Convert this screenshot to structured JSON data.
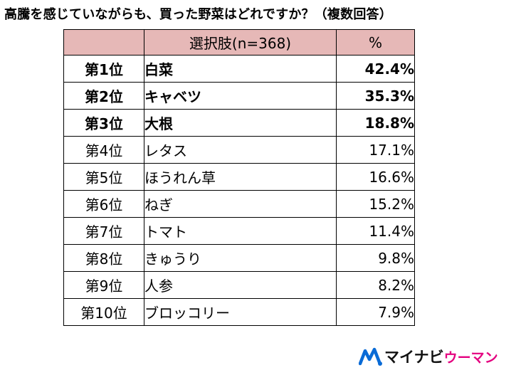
{
  "title": "高騰を感じていながらも、買った野菜はどれですか？（複数回答）",
  "table": {
    "header": {
      "rank": "",
      "item": "選択肢(n=368)",
      "pct": "%"
    },
    "rows": [
      {
        "rank": "第1位",
        "item": "白菜",
        "pct": "42.4%"
      },
      {
        "rank": "第2位",
        "item": "キャベツ",
        "pct": "35.3%"
      },
      {
        "rank": "第3位",
        "item": "大根",
        "pct": "18.8%"
      },
      {
        "rank": "第4位",
        "item": "レタス",
        "pct": "17.1%"
      },
      {
        "rank": "第5位",
        "item": "ほうれん草",
        "pct": "16.6%"
      },
      {
        "rank": "第6位",
        "item": "ねぎ",
        "pct": "15.2%"
      },
      {
        "rank": "第7位",
        "item": "トマト",
        "pct": "11.4%"
      },
      {
        "rank": "第8位",
        "item": "きゅうり",
        "pct": "9.8%"
      },
      {
        "rank": "第9位",
        "item": "人参",
        "pct": "8.2%"
      },
      {
        "rank": "第10位",
        "item": "ブロッコリー",
        "pct": "7.9%"
      }
    ]
  },
  "chart_data": {
    "type": "table",
    "title": "高騰を感じていながらも、買った野菜はどれですか？（複数回答）",
    "columns": [
      "",
      "選択肢(n=368)",
      "%"
    ],
    "categories": [
      "白菜",
      "キャベツ",
      "大根",
      "レタス",
      "ほうれん草",
      "ねぎ",
      "トマト",
      "きゅうり",
      "人参",
      "ブロッコリー"
    ],
    "values": [
      42.4,
      35.3,
      18.8,
      17.1,
      16.6,
      15.2,
      11.4,
      9.8,
      8.2,
      7.9
    ]
  },
  "logo": {
    "brand": "マイナビ",
    "sub": "ウーマン",
    "icon": "mynavi-logo-icon"
  },
  "colors": {
    "header_bg": "#e6b8b7",
    "logo_accent": "#e4007f",
    "logo_blue": "#0a6bd6"
  }
}
